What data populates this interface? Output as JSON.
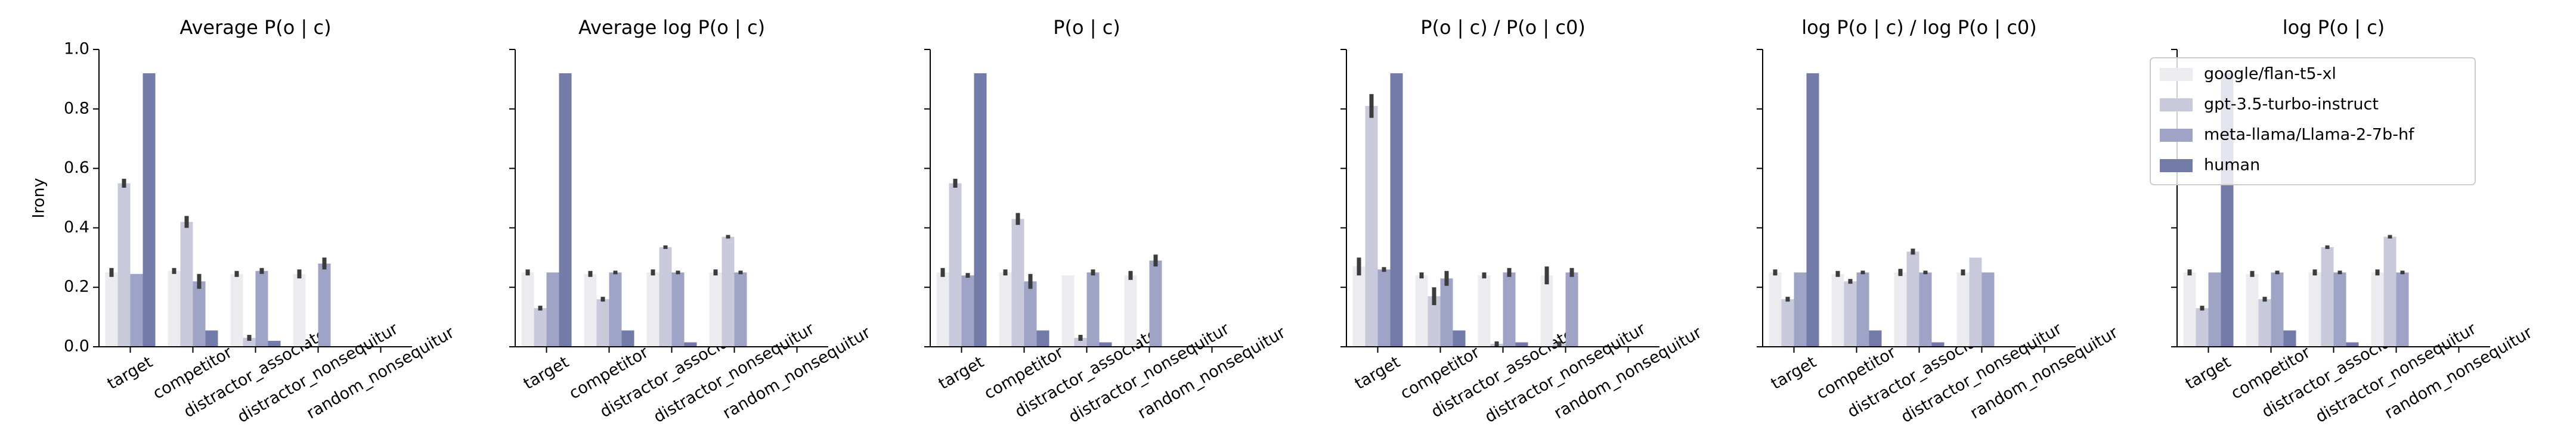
{
  "chart_data": [
    {
      "type": "bar",
      "title": "Average P(o | c)",
      "ylabel": "Irony",
      "categories": [
        "target",
        "competitor",
        "distractor_associate",
        "distractor_nonsequitur",
        "random_nonsequitur"
      ],
      "ylim": [
        0,
        1
      ],
      "yticks": [
        {
          "value": 0,
          "label": "0.0"
        },
        {
          "value": 0.2,
          "label": "0.2"
        },
        {
          "value": 0.4,
          "label": "0.4"
        },
        {
          "value": 0.6,
          "label": "0.6"
        },
        {
          "value": 0.8,
          "label": "0.8"
        },
        {
          "value": 1,
          "label": "1.0"
        }
      ],
      "series": [
        {
          "color": "#ebebf0",
          "values": [
            0.25,
            0.255,
            0.245,
            0.245,
            0
          ],
          "errors": [
            0.015,
            0.01,
            0.01,
            0.015,
            0
          ]
        },
        {
          "color": "#c8cadc",
          "values": [
            0.55,
            0.42,
            0.03,
            0,
            0
          ],
          "errors": [
            0.015,
            0.02,
            0.01,
            0,
            0
          ]
        },
        {
          "color": "#9fa4c6",
          "values": [
            0.245,
            0.22,
            0.255,
            0.28,
            0
          ],
          "errors": [
            0,
            0.025,
            0.01,
            0.02,
            0
          ]
        },
        {
          "color": "#737ba8",
          "values": [
            0.92,
            0.055,
            0.02,
            0,
            0
          ],
          "errors": [
            0,
            0,
            0,
            0,
            0
          ]
        }
      ]
    },
    {
      "type": "bar",
      "title": "Average log P(o | c)",
      "categories": [
        "target",
        "competitor",
        "distractor_associate",
        "distractor_nonsequitur",
        "random_nonsequitur"
      ],
      "ylim": [
        0,
        1
      ],
      "yticks": [
        0,
        0.2,
        0.4,
        0.6,
        0.8,
        1
      ],
      "series": [
        {
          "color": "#ebebf0",
          "values": [
            0.25,
            0.245,
            0.25,
            0.25,
            0
          ],
          "errors": [
            0.01,
            0.01,
            0.01,
            0.01,
            0
          ]
        },
        {
          "color": "#c8cadc",
          "values": [
            0.13,
            0.16,
            0.335,
            0.37,
            0
          ],
          "errors": [
            0.008,
            0.008,
            0.006,
            0.006,
            0
          ]
        },
        {
          "color": "#9fa4c6",
          "values": [
            0.25,
            0.25,
            0.25,
            0.25,
            0
          ],
          "errors": [
            0,
            0.006,
            0.006,
            0.006,
            0
          ]
        },
        {
          "color": "#737ba8",
          "values": [
            0.92,
            0.055,
            0.015,
            0,
            0
          ],
          "errors": [
            0,
            0,
            0,
            0,
            0
          ]
        }
      ]
    },
    {
      "type": "bar",
      "title": "P(o | c)",
      "categories": [
        "target",
        "competitor",
        "distractor_associate",
        "distractor_nonsequitur",
        "random_nonsequitur"
      ],
      "ylim": [
        0,
        1
      ],
      "yticks": [
        0,
        0.2,
        0.4,
        0.6,
        0.8,
        1
      ],
      "series": [
        {
          "color": "#ebebf0",
          "values": [
            0.25,
            0.25,
            0.24,
            0.24,
            0
          ],
          "errors": [
            0.015,
            0.01,
            0,
            0.015,
            0
          ]
        },
        {
          "color": "#c8cadc",
          "values": [
            0.55,
            0.43,
            0.03,
            0,
            0
          ],
          "errors": [
            0.015,
            0.02,
            0.01,
            0,
            0
          ]
        },
        {
          "color": "#9fa4c6",
          "values": [
            0.24,
            0.22,
            0.25,
            0.29,
            0
          ],
          "errors": [
            0.008,
            0.025,
            0.01,
            0.02,
            0
          ]
        },
        {
          "color": "#737ba8",
          "values": [
            0.92,
            0.055,
            0.015,
            0,
            0
          ],
          "errors": [
            0,
            0,
            0,
            0,
            0
          ]
        }
      ]
    },
    {
      "type": "bar",
      "title": "P(o | c) / P(o | c0)",
      "categories": [
        "target",
        "competitor",
        "distractor_associate",
        "distractor_nonsequitur",
        "random_nonsequitur"
      ],
      "ylim": [
        0,
        1
      ],
      "yticks": [
        0,
        0.2,
        0.4,
        0.6,
        0.8,
        1
      ],
      "series": [
        {
          "color": "#ebebf0",
          "values": [
            0.27,
            0.24,
            0.24,
            0.24,
            0
          ],
          "errors": [
            0.03,
            0.01,
            0.01,
            0.03,
            0
          ]
        },
        {
          "color": "#c8cadc",
          "values": [
            0.81,
            0.17,
            0.01,
            0.01,
            0
          ],
          "errors": [
            0.04,
            0.03,
            0.008,
            0.008,
            0
          ]
        },
        {
          "color": "#9fa4c6",
          "values": [
            0.26,
            0.23,
            0.25,
            0.25,
            0
          ],
          "errors": [
            0.008,
            0.025,
            0.015,
            0.015,
            0
          ]
        },
        {
          "color": "#737ba8",
          "values": [
            0.92,
            0.055,
            0.015,
            0,
            0
          ],
          "errors": [
            0,
            0,
            0,
            0,
            0
          ]
        }
      ]
    },
    {
      "type": "bar",
      "title": "log P(o | c) / log P(o | c0)",
      "categories": [
        "target",
        "competitor",
        "distractor_associate",
        "distractor_nonsequitur",
        "random_nonsequitur"
      ],
      "ylim": [
        0,
        1
      ],
      "yticks": [
        0,
        0.2,
        0.4,
        0.6,
        0.8,
        1
      ],
      "series": [
        {
          "color": "#ebebf0",
          "values": [
            0.25,
            0.245,
            0.25,
            0.25,
            0
          ],
          "errors": [
            0.01,
            0.01,
            0.012,
            0.01,
            0
          ]
        },
        {
          "color": "#c8cadc",
          "values": [
            0.16,
            0.22,
            0.32,
            0.3,
            0
          ],
          "errors": [
            0.008,
            0.008,
            0.01,
            0,
            0
          ]
        },
        {
          "color": "#9fa4c6",
          "values": [
            0.25,
            0.25,
            0.25,
            0.25,
            0
          ],
          "errors": [
            0,
            0.006,
            0.006,
            0,
            0
          ]
        },
        {
          "color": "#737ba8",
          "values": [
            0.92,
            0.055,
            0.015,
            0,
            0
          ],
          "errors": [
            0,
            0,
            0,
            0,
            0
          ]
        }
      ]
    },
    {
      "type": "bar",
      "title": "log P(o | c)",
      "legend": "upper left",
      "categories": [
        "target",
        "competitor",
        "distractor_associate",
        "distractor_nonsequitur",
        "random_nonsequitur"
      ],
      "ylim": [
        0,
        1
      ],
      "yticks": [
        0,
        0.2,
        0.4,
        0.6,
        0.8,
        1
      ],
      "series": [
        {
          "name": "google/flan-t5-xl",
          "color": "#ebebf0",
          "values": [
            0.25,
            0.245,
            0.25,
            0.25,
            0
          ],
          "errors": [
            0.01,
            0.01,
            0.01,
            0.01,
            0
          ]
        },
        {
          "name": "gpt-3.5-turbo-instruct",
          "color": "#c8cadc",
          "values": [
            0.13,
            0.16,
            0.335,
            0.37,
            0
          ],
          "errors": [
            0.008,
            0.008,
            0.006,
            0.006,
            0
          ]
        },
        {
          "name": "meta-llama/Llama-2-7b-hf",
          "color": "#9fa4c6",
          "values": [
            0.25,
            0.25,
            0.25,
            0.25,
            0
          ],
          "errors": [
            0,
            0.006,
            0.006,
            0.006,
            0
          ]
        },
        {
          "name": "human",
          "color": "#737ba8",
          "values": [
            0.92,
            0.055,
            0.015,
            0,
            0
          ],
          "errors": [
            0,
            0,
            0,
            0,
            0
          ]
        }
      ]
    }
  ]
}
